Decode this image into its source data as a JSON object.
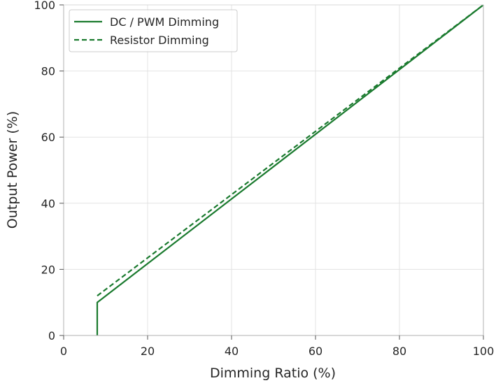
{
  "chart_data": {
    "type": "line",
    "title": "",
    "xlabel": "Dimming Ratio (%)",
    "ylabel": "Output Power (%)",
    "xlim": [
      0,
      100
    ],
    "ylim": [
      0,
      100
    ],
    "xticks": [
      0,
      20,
      40,
      60,
      80,
      100
    ],
    "yticks": [
      0,
      20,
      40,
      60,
      80,
      100
    ],
    "grid": true,
    "legend_position": "top-left",
    "series": [
      {
        "name": "DC / PWM Dimming",
        "style": "solid",
        "color": "#1a7a2e",
        "points": [
          [
            8,
            0
          ],
          [
            8,
            10
          ],
          [
            100,
            100
          ]
        ]
      },
      {
        "name": "Resistor Dimming",
        "style": "dashed",
        "color": "#1a7a2e",
        "points": [
          [
            8,
            12
          ],
          [
            100,
            100
          ]
        ]
      }
    ]
  }
}
